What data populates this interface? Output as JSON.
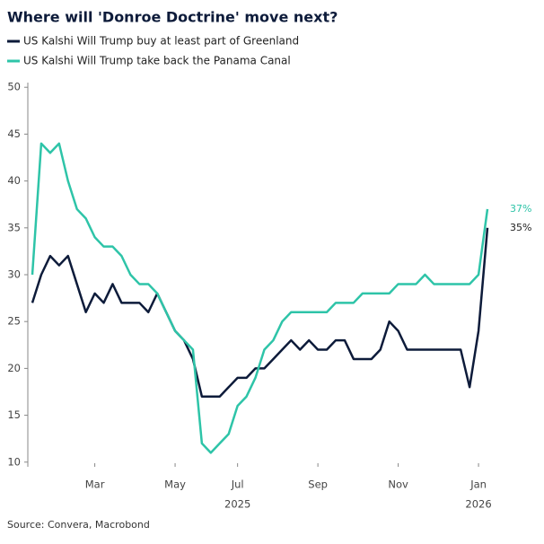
{
  "chart_data": {
    "type": "line",
    "title": "Where will 'Donroe Doctrine' move next?",
    "source": "Source: Convera, Macrobond",
    "categories": [
      null,
      null,
      null,
      null,
      null,
      null,
      null,
      "Mar",
      null,
      null,
      null,
      null,
      null,
      null,
      null,
      null,
      "May",
      null,
      null,
      null,
      null,
      null,
      null,
      "Jul",
      null,
      null,
      null,
      null,
      null,
      null,
      null,
      null,
      "Sep",
      null,
      null,
      null,
      null,
      null,
      null,
      null,
      null,
      "Nov",
      null,
      null,
      null,
      null,
      null,
      null,
      null,
      null,
      "Jan",
      null
    ],
    "year_labels": [
      "2025",
      "2026"
    ],
    "series": [
      {
        "name": "US Kalshi Will Trump buy at least part of Greenland",
        "color": "#0d1b3a",
        "end_label": "35%",
        "values": [
          27,
          30,
          32,
          31,
          32,
          29,
          26,
          28,
          27,
          29,
          27,
          27,
          27,
          26,
          28,
          26,
          24,
          23,
          21,
          17,
          17,
          17,
          18,
          19,
          19,
          20,
          20,
          21,
          22,
          23,
          22,
          23,
          22,
          22,
          23,
          23,
          21,
          21,
          21,
          22,
          25,
          24,
          22,
          22,
          22,
          22,
          22,
          22,
          22,
          18,
          24,
          35
        ]
      },
      {
        "name": "US Kalshi Will Trump take back the Panama Canal",
        "color": "#2ec4a8",
        "end_label": "37%",
        "values": [
          30,
          44,
          43,
          44,
          40,
          37,
          36,
          34,
          33,
          33,
          32,
          30,
          29,
          29,
          28,
          26,
          24,
          23,
          22,
          12,
          11,
          12,
          13,
          16,
          17,
          19,
          22,
          23,
          25,
          26,
          26,
          26,
          26,
          26,
          27,
          27,
          27,
          28,
          28,
          28,
          28,
          29,
          29,
          29,
          30,
          29,
          29,
          29,
          29,
          29,
          30,
          37
        ]
      }
    ],
    "ylim": [
      9.5,
      50.5
    ],
    "yticks": [
      10,
      15,
      20,
      25,
      30,
      35,
      40,
      45,
      50
    ]
  }
}
